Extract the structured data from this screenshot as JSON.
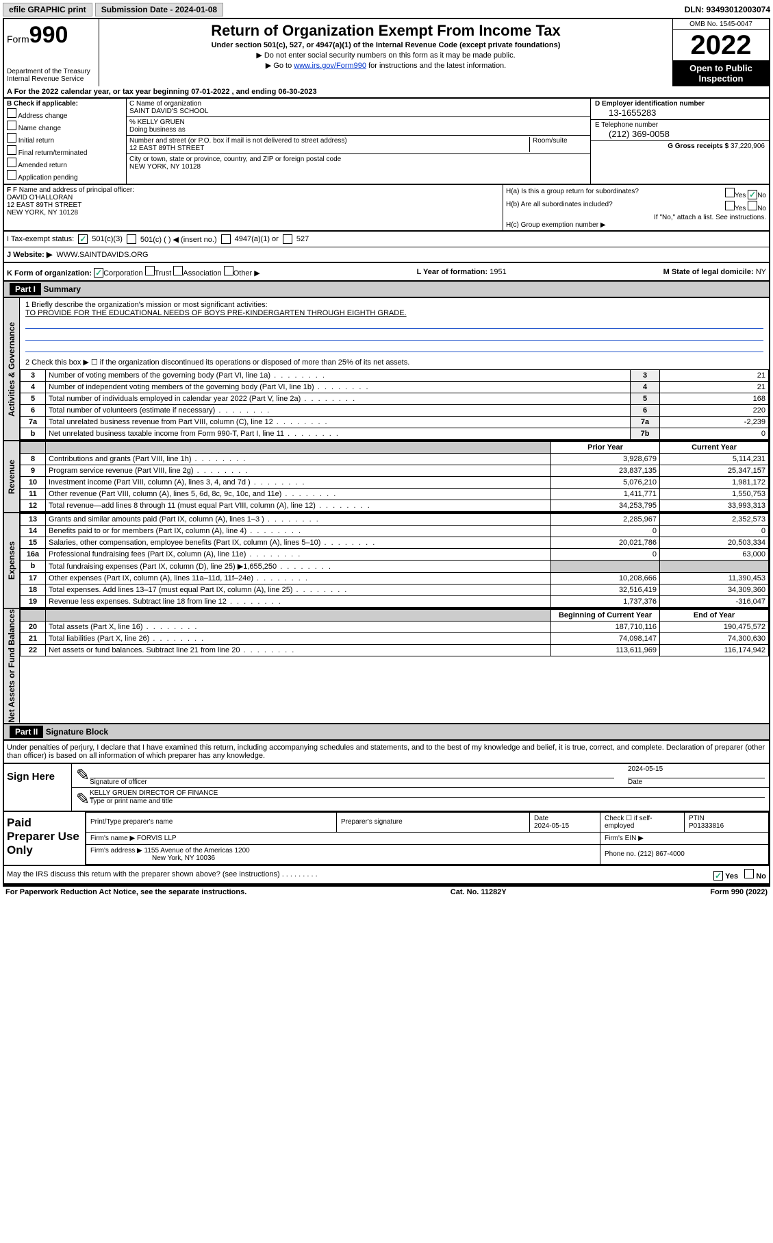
{
  "topbar": {
    "efile": "efile GRAPHIC print",
    "submission_label": "Submission Date - 2024-01-08",
    "dln": "DLN: 93493012003074"
  },
  "header": {
    "form_prefix": "Form",
    "form_number": "990",
    "dept": "Department of the Treasury",
    "irs": "Internal Revenue Service",
    "title": "Return of Organization Exempt From Income Tax",
    "subtitle": "Under section 501(c), 527, or 4947(a)(1) of the Internal Revenue Code (except private foundations)",
    "hint1": "▶ Do not enter social security numbers on this form as it may be made public.",
    "hint2_pre": "▶ Go to ",
    "hint2_link": "www.irs.gov/Form990",
    "hint2_post": " for instructions and the latest information.",
    "omb": "OMB No. 1545-0047",
    "year": "2022",
    "badge1": "Open to Public",
    "badge2": "Inspection"
  },
  "lineA": "A For the 2022 calendar year, or tax year beginning 07-01-2022   , and ending 06-30-2023",
  "sectionB": {
    "title": "B Check if applicable:",
    "opts": [
      "Address change",
      "Name change",
      "Initial return",
      "Final return/terminated",
      "Amended return",
      "Application pending"
    ]
  },
  "sectionC": {
    "name_label": "C Name of organization",
    "name": "SAINT DAVID'S SCHOOL",
    "care_of": "% KELLY GRUEN",
    "dba_label": "Doing business as",
    "addr_label": "Number and street (or P.O. box if mail is not delivered to street address)",
    "room_label": "Room/suite",
    "addr": "12 EAST 89TH STREET",
    "city_label": "City or town, state or province, country, and ZIP or foreign postal code",
    "city": "NEW YORK, NY  10128"
  },
  "sectionD": {
    "label": "D Employer identification number",
    "ein": "13-1655283",
    "e_label": "E Telephone number",
    "phone": "(212) 369-0058",
    "g_label": "G Gross receipts $",
    "gross": "37,220,906"
  },
  "sectionF": {
    "label": "F Name and address of principal officer:",
    "name": "DAVID O'HALLORAN",
    "addr1": "12 EAST 89TH STREET",
    "addr2": "NEW YORK, NY  10128"
  },
  "sectionH": {
    "a_label": "H(a)  Is this a group return for subordinates?",
    "a_yes": "Yes",
    "a_no": "No",
    "b_label": "H(b)  Are all subordinates included?",
    "b_hint": "If \"No,\" attach a list. See instructions.",
    "c_label": "H(c)  Group exemption number ▶"
  },
  "rowI": {
    "label": "I   Tax-exempt status:",
    "opt1": "501(c)(3)",
    "opt2": "501(c) (   ) ◀ (insert no.)",
    "opt3": "4947(a)(1) or",
    "opt4": "527"
  },
  "rowJ": {
    "label": "J   Website: ▶",
    "url": "WWW.SAINTDAVIDS.ORG"
  },
  "rowK": {
    "label": "K Form of organization:",
    "opts": [
      "Corporation",
      "Trust",
      "Association",
      "Other ▶"
    ],
    "year_label": "L Year of formation:",
    "year": "1951",
    "state_label": "M State of legal domicile:",
    "state": "NY"
  },
  "part1": {
    "header": "Part I",
    "title": "Summary",
    "mission_label": "1   Briefly describe the organization's mission or most significant activities:",
    "mission": "TO PROVIDE FOR THE EDUCATIONAL NEEDS OF BOYS PRE-KINDERGARTEN THROUGH EIGHTH GRADE.",
    "line2": "2   Check this box ▶ ☐  if the organization discontinued its operations or disposed of more than 25% of its net assets."
  },
  "governance_rows": [
    {
      "n": "3",
      "label": "Number of voting members of the governing body (Part VI, line 1a)",
      "box": "3",
      "val": "21"
    },
    {
      "n": "4",
      "label": "Number of independent voting members of the governing body (Part VI, line 1b)",
      "box": "4",
      "val": "21"
    },
    {
      "n": "5",
      "label": "Total number of individuals employed in calendar year 2022 (Part V, line 2a)",
      "box": "5",
      "val": "168"
    },
    {
      "n": "6",
      "label": "Total number of volunteers (estimate if necessary)",
      "box": "6",
      "val": "220"
    },
    {
      "n": "7a",
      "label": "Total unrelated business revenue from Part VIII, column (C), line 12",
      "box": "7a",
      "val": "-2,239"
    },
    {
      "n": "b",
      "label": "Net unrelated business taxable income from Form 990-T, Part I, line 11",
      "box": "7b",
      "val": "0"
    }
  ],
  "two_col_header": {
    "prior": "Prior Year",
    "current": "Current Year"
  },
  "revenue_rows": [
    {
      "n": "8",
      "label": "Contributions and grants (Part VIII, line 1h)",
      "prior": "3,928,679",
      "curr": "5,114,231"
    },
    {
      "n": "9",
      "label": "Program service revenue (Part VIII, line 2g)",
      "prior": "23,837,135",
      "curr": "25,347,157"
    },
    {
      "n": "10",
      "label": "Investment income (Part VIII, column (A), lines 3, 4, and 7d )",
      "prior": "5,076,210",
      "curr": "1,981,172"
    },
    {
      "n": "11",
      "label": "Other revenue (Part VIII, column (A), lines 5, 6d, 8c, 9c, 10c, and 11e)",
      "prior": "1,411,771",
      "curr": "1,550,753"
    },
    {
      "n": "12",
      "label": "Total revenue—add lines 8 through 11 (must equal Part VIII, column (A), line 12)",
      "prior": "34,253,795",
      "curr": "33,993,313"
    }
  ],
  "expense_rows": [
    {
      "n": "13",
      "label": "Grants and similar amounts paid (Part IX, column (A), lines 1–3 )",
      "prior": "2,285,967",
      "curr": "2,352,573"
    },
    {
      "n": "14",
      "label": "Benefits paid to or for members (Part IX, column (A), line 4)",
      "prior": "0",
      "curr": "0"
    },
    {
      "n": "15",
      "label": "Salaries, other compensation, employee benefits (Part IX, column (A), lines 5–10)",
      "prior": "20,021,786",
      "curr": "20,503,334"
    },
    {
      "n": "16a",
      "label": "Professional fundraising fees (Part IX, column (A), line 11e)",
      "prior": "0",
      "curr": "63,000"
    },
    {
      "n": "b",
      "label": "Total fundraising expenses (Part IX, column (D), line 25) ▶1,655,250",
      "prior": "",
      "curr": "",
      "shaded": true
    },
    {
      "n": "17",
      "label": "Other expenses (Part IX, column (A), lines 11a–11d, 11f–24e)",
      "prior": "10,208,666",
      "curr": "11,390,453"
    },
    {
      "n": "18",
      "label": "Total expenses. Add lines 13–17 (must equal Part IX, column (A), line 25)",
      "prior": "32,516,419",
      "curr": "34,309,360"
    },
    {
      "n": "19",
      "label": "Revenue less expenses. Subtract line 18 from line 12",
      "prior": "1,737,376",
      "curr": "-316,047"
    }
  ],
  "netassets_header": {
    "begin": "Beginning of Current Year",
    "end": "End of Year"
  },
  "netassets_rows": [
    {
      "n": "20",
      "label": "Total assets (Part X, line 16)",
      "prior": "187,710,116",
      "curr": "190,475,572"
    },
    {
      "n": "21",
      "label": "Total liabilities (Part X, line 26)",
      "prior": "74,098,147",
      "curr": "74,300,630"
    },
    {
      "n": "22",
      "label": "Net assets or fund balances. Subtract line 21 from line 20",
      "prior": "113,611,969",
      "curr": "116,174,942"
    }
  ],
  "vtabs": {
    "gov": "Activities & Governance",
    "rev": "Revenue",
    "exp": "Expenses",
    "net": "Net Assets or Fund Balances"
  },
  "part2": {
    "header": "Part II",
    "title": "Signature Block",
    "declaration": "Under penalties of perjury, I declare that I have examined this return, including accompanying schedules and statements, and to the best of my knowledge and belief, it is true, correct, and complete. Declaration of preparer (other than officer) is based on all information of which preparer has any knowledge."
  },
  "sign": {
    "left": "Sign Here",
    "sig_label": "Signature of officer",
    "date": "2024-05-15",
    "date_label": "Date",
    "name": "KELLY GRUEN  DIRECTOR OF FINANCE",
    "name_label": "Type or print name and title"
  },
  "paid": {
    "left": "Paid Preparer Use Only",
    "h1": "Print/Type preparer's name",
    "h2": "Preparer's signature",
    "h3": "Date",
    "date": "2024-05-15",
    "h4": "Check ☐ if self-employed",
    "h5": "PTIN",
    "ptin": "P01333816",
    "firm_label": "Firm's name    ▶",
    "firm": "FORVIS LLP",
    "ein_label": "Firm's EIN ▶",
    "addr_label": "Firm's address ▶",
    "addr": "1155 Avenue of the Americas 1200",
    "addr2": "New York, NY  10036",
    "phone_label": "Phone no.",
    "phone": "(212) 867-4000"
  },
  "discuss": {
    "label": "May the IRS discuss this return with the preparer shown above? (see instructions)",
    "yes": "Yes",
    "no": "No"
  },
  "footer": {
    "left": "For Paperwork Reduction Act Notice, see the separate instructions.",
    "mid": "Cat. No. 11282Y",
    "right": "Form 990 (2022)"
  }
}
